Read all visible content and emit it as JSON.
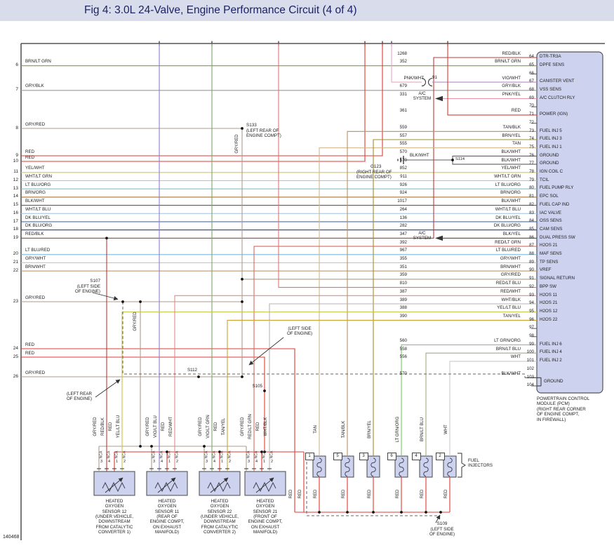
{
  "title": "Fig 4: 3.0L 24-Valve, Engine Performance Circuit (4 of 4)",
  "figure_number": "140468",
  "colors": {
    "BRN/LT GRN": "#7f9c4e",
    "GRY/BLK": "#9a9a9a",
    "GRY/RED": "#ad9b8d",
    "RED": "#e03a30",
    "YEL/WHT": "#d6ca52",
    "WHT/LT GRN": "#a5d3a0",
    "LT BLU/ORG": "#6fc6d8",
    "BRN/ORG": "#a4742e",
    "BLK/WHT": "#5f5f5f",
    "WHT/LT BLU": "#a9c9e4",
    "DK BLU/YEL": "#3555b4",
    "DK BLU/ORG": "#2b3a92",
    "RED/BLK": "#bf3a36",
    "LT BLU/RED": "#7cb8da",
    "GRY/WHT": "#c2c2c2",
    "BRN/WHT": "#bb9a76",
    "TAN": "#d4b68c",
    "TAN/BLK": "#b49362",
    "TAN/YEL": "#c9a233",
    "BRN/YEL": "#a68b2c",
    "LT GRN/ORG": "#74c95e",
    "BRN/LT BLU": "#a9a97e",
    "WHT": "#c9c9c9",
    "VIO/WHT": "#c184d2",
    "PNK/WHT": "#e9a6c6",
    "PNK/YEL": "#e694aa",
    "BLK/YEL": "#55512e",
    "RED/LT GRN": "#d96a5a",
    "RED/LT BLU": "#e2736e",
    "RED/WHT": "#e28a82",
    "WHT/BLK": "#b5b5b5",
    "YEL/LT BLU": "#c9c344",
    "VIO/LT BLU": "#8f7fc9",
    "VIO/LT GRN": "#7fa465"
  },
  "left_wires": [
    {
      "num": "6",
      "color": "BRN/LT GRN"
    },
    {
      "num": "7",
      "color": "GRY/BLK"
    },
    {
      "num": "8",
      "color": "GRY/RED"
    },
    {
      "num": "9",
      "color": "RED"
    },
    {
      "num": "10",
      "color": "RED"
    },
    {
      "num": "11",
      "color": "YEL/WHT"
    },
    {
      "num": "12",
      "color": "WHT/LT GRN"
    },
    {
      "num": "13",
      "color": "LT BLU/ORG"
    },
    {
      "num": "14",
      "color": "BRN/ORG"
    },
    {
      "num": "15",
      "color": "BLK/WHT"
    },
    {
      "num": "16",
      "color": "WHT/LT BLU"
    },
    {
      "num": "17",
      "color": "DK BLU/YEL"
    },
    {
      "num": "18",
      "color": "DK BLU/ORG"
    },
    {
      "num": "19",
      "color": "RED/BLK"
    },
    {
      "num": "20",
      "color": "LT BLU/RED"
    },
    {
      "num": "21",
      "color": "GRY/WHT"
    },
    {
      "num": "22",
      "color": "BRN/WHT"
    },
    {
      "num": "23",
      "color": "GRY/RED"
    },
    {
      "num": "24",
      "color": "RED"
    },
    {
      "num": "25",
      "color": "RED"
    },
    {
      "num": "26",
      "color": "GRY/RED"
    }
  ],
  "pcm": {
    "pins": [
      {
        "pin": "64",
        "circuit": "1268",
        "color": "RED/BLK",
        "label": "DTR-TR3A"
      },
      {
        "pin": "65",
        "circuit": "352",
        "color": "BRN/LT GRN",
        "label": "DPFE SENS"
      },
      {
        "pin": "66",
        "circuit": "",
        "color": "",
        "label": ""
      },
      {
        "pin": "67",
        "circuit": "91",
        "color": "VIO/WHT",
        "label": "CANISTER VENT"
      },
      {
        "pin": "68",
        "circuit": "679",
        "color": "GRY/BLK",
        "label": "VSS SENS"
      },
      {
        "pin": "69",
        "circuit": "331",
        "color": "PNK/YEL",
        "label": "A/C CLUTCH RLY"
      },
      {
        "pin": "70",
        "circuit": "",
        "color": "",
        "label": ""
      },
      {
        "pin": "71",
        "circuit": "361",
        "color": "RED",
        "label": "POWER (IGN)"
      },
      {
        "pin": "72",
        "circuit": "",
        "color": "",
        "label": ""
      },
      {
        "pin": "73",
        "circuit": "559",
        "color": "TAN/BLK",
        "label": "FUEL INJ 5"
      },
      {
        "pin": "74",
        "circuit": "557",
        "color": "BRN/YEL",
        "label": "FUEL INJ 3"
      },
      {
        "pin": "75",
        "circuit": "555",
        "color": "TAN",
        "label": "FUEL INJ 1"
      },
      {
        "pin": "76",
        "circuit": "570",
        "color": "BLK/WHT",
        "label": "GROUND"
      },
      {
        "pin": "77",
        "circuit": "570",
        "color": "BLK/WHT",
        "label": "GROUND"
      },
      {
        "pin": "78",
        "circuit": "852",
        "color": "YEL/WHT",
        "label": "IGN COIL C"
      },
      {
        "pin": "79",
        "circuit": "911",
        "color": "WHT/LT GRN",
        "label": "TCIL"
      },
      {
        "pin": "80",
        "circuit": "926",
        "color": "LT BLU/ORG",
        "label": "FUEL PUMP RLY"
      },
      {
        "pin": "81",
        "circuit": "924",
        "color": "BRN/ORG",
        "label": "EPC SOL"
      },
      {
        "pin": "82",
        "circuit": "1017",
        "color": "BLK/WHT",
        "label": "FUEL CAP IND"
      },
      {
        "pin": "83",
        "circuit": "264",
        "color": "WHT/LT BLU",
        "label": "IAC VALVE"
      },
      {
        "pin": "84",
        "circuit": "136",
        "color": "DK BLU/YEL",
        "label": "OSS SENS"
      },
      {
        "pin": "85",
        "circuit": "282",
        "color": "DK BLU/ORG",
        "label": "CAM SENS"
      },
      {
        "pin": "86",
        "circuit": "347",
        "color": "BLK/YEL",
        "label": "DUAL PRESS SW"
      },
      {
        "pin": "87",
        "circuit": "392",
        "color": "RED/LT GRN",
        "label": "H2OS 21"
      },
      {
        "pin": "88",
        "circuit": "967",
        "color": "LT BLU/RED",
        "label": "MAF SENS"
      },
      {
        "pin": "89",
        "circuit": "355",
        "color": "GRY/WHT",
        "label": "TP SENS"
      },
      {
        "pin": "90",
        "circuit": "351",
        "color": "BRN/WHT",
        "label": "VREF"
      },
      {
        "pin": "91",
        "circuit": "359",
        "color": "GRY/RED",
        "label": "SIGNAL RETURN"
      },
      {
        "pin": "92",
        "circuit": "810",
        "color": "RED/LT BLU",
        "label": "BPP SW"
      },
      {
        "pin": "93",
        "circuit": "387",
        "color": "RED/WHT",
        "label": "H2OS 11"
      },
      {
        "pin": "94",
        "circuit": "389",
        "color": "WHT/BLK",
        "label": "H2OS 21"
      },
      {
        "pin": "95",
        "circuit": "388",
        "color": "YEL/LT BLU",
        "label": "H2OS 12"
      },
      {
        "pin": "96",
        "circuit": "390",
        "color": "TAN/YEL",
        "label": "H2OS 22"
      },
      {
        "pin": "97",
        "circuit": "",
        "color": "",
        "label": ""
      },
      {
        "pin": "98",
        "circuit": "",
        "color": "",
        "label": ""
      },
      {
        "pin": "99",
        "circuit": "560",
        "color": "LT GRN/ORG",
        "label": "FUEL INJ 6"
      },
      {
        "pin": "100",
        "circuit": "558",
        "color": "BRN/LT BLU",
        "label": "FUEL INJ 4"
      },
      {
        "pin": "101",
        "circuit": "556",
        "color": "WHT",
        "label": "FUEL INJ 2"
      },
      {
        "pin": "102",
        "circuit": "",
        "color": "",
        "label": ""
      },
      {
        "pin": "103",
        "circuit": "570",
        "color": "BLK/WHT",
        "label": ""
      },
      {
        "pin": "104",
        "circuit": "",
        "color": "",
        "label": ""
      }
    ],
    "ground_label": "GROUND",
    "caption_lines": [
      "POWERTRAIN CONTROL",
      "MODULE (PCM)",
      "(RIGHT REAR CORNER",
      "OF ENGINE COMPT,",
      "IN FIREWALL)"
    ]
  },
  "sensors": [
    {
      "wires": [
        {
          "pin": "3",
          "color": "GRY/RED"
        },
        {
          "pin": "4",
          "color": "RED/BLK"
        },
        {
          "pin": "1",
          "color": "RED"
        },
        {
          "pin": "2",
          "color": "YEL/LT BLU"
        }
      ],
      "label_lines": [
        "HEATED",
        "OXYGEN",
        "SENSOR 12",
        "(UNDER VEHICLE,",
        "DOWNSTREAM",
        "FROM CATALYTIC",
        "CONVERTER 1)"
      ]
    },
    {
      "wires": [
        {
          "pin": "3",
          "color": "GRY/RED"
        },
        {
          "pin": "4",
          "color": "VIO/LT BLU"
        },
        {
          "pin": "1",
          "color": "RED"
        },
        {
          "pin": "2",
          "color": "RED/WHT"
        }
      ],
      "label_lines": [
        "HEATED",
        "OXYGEN",
        "SENSOR 11",
        "(REAR OF",
        "ENGINE COMPT,",
        "ON EXHAUST",
        "MANIFOLD)"
      ]
    },
    {
      "wires": [
        {
          "pin": "3",
          "color": "GRY/RED"
        },
        {
          "pin": "4",
          "color": "VIO/LT GRN"
        },
        {
          "pin": "1",
          "color": "RED"
        },
        {
          "pin": "2",
          "color": "TAN/YEL"
        }
      ],
      "label_lines": [
        "HEATED",
        "OXYGEN",
        "SENSOR 22",
        "(UNDER VEHICLE,",
        "DOWNSTREAM",
        "FROM CATALYTIC",
        "CONVERTER 2)"
      ]
    },
    {
      "wires": [
        {
          "pin": "3",
          "color": "GRY/RED"
        },
        {
          "pin": "4",
          "color": "RED/LT GRN"
        },
        {
          "pin": "1",
          "color": "RED"
        },
        {
          "pin": "2",
          "color": "WHT/BLK"
        }
      ],
      "label_lines": [
        "HEATED",
        "OXYGEN",
        "SENSOR 21",
        "(FRONT OF",
        "ENGINE COMPT,",
        "ON EXHAUST",
        "MANIFOLD)"
      ]
    }
  ],
  "injectors": {
    "group_label_lines": [
      "FUEL",
      "INJECTORS"
    ],
    "items": [
      {
        "num": "1",
        "color": "TAN"
      },
      {
        "num": "5",
        "color": "TAN/BLK"
      },
      {
        "num": "3",
        "color": "BRN/YEL"
      },
      {
        "num": "6",
        "color": "LT GRN/ORG"
      },
      {
        "num": "4",
        "color": "BRN/LT BLU"
      },
      {
        "num": "2",
        "color": "WHT"
      }
    ]
  },
  "annotations": {
    "s133": {
      "name": "S133",
      "lines": [
        "(LEFT REAR OF",
        "ENGINE COMPT)"
      ]
    },
    "g123": {
      "name": "G123",
      "lines": [
        "(RIGHT REAR OF",
        "ENGINE COMPT)"
      ]
    },
    "s114": "S114",
    "s107": {
      "name": "S107",
      "lines": [
        "(LEFT SIDE",
        "OF ENGINE)"
      ]
    },
    "s112": "S112",
    "s105": "S105",
    "s109": {
      "name": "S109",
      "lines": [
        "(LEFT SIDE",
        "OF ENGINE)"
      ]
    },
    "left_side_engine": [
      "(LEFT SIDE",
      "OF ENGINE)"
    ],
    "left_rear_engine": [
      "(LEFT REAR",
      "OF ENGINE)"
    ],
    "ac_system": [
      "A/C",
      "SYSTEM"
    ],
    "pnk_wht": "PNK/WHT",
    "blk_wht": "BLK/WHT",
    "gry_red_vertical": "GRY/RED",
    "red_vertical": "RED",
    "nca": "NCA"
  }
}
